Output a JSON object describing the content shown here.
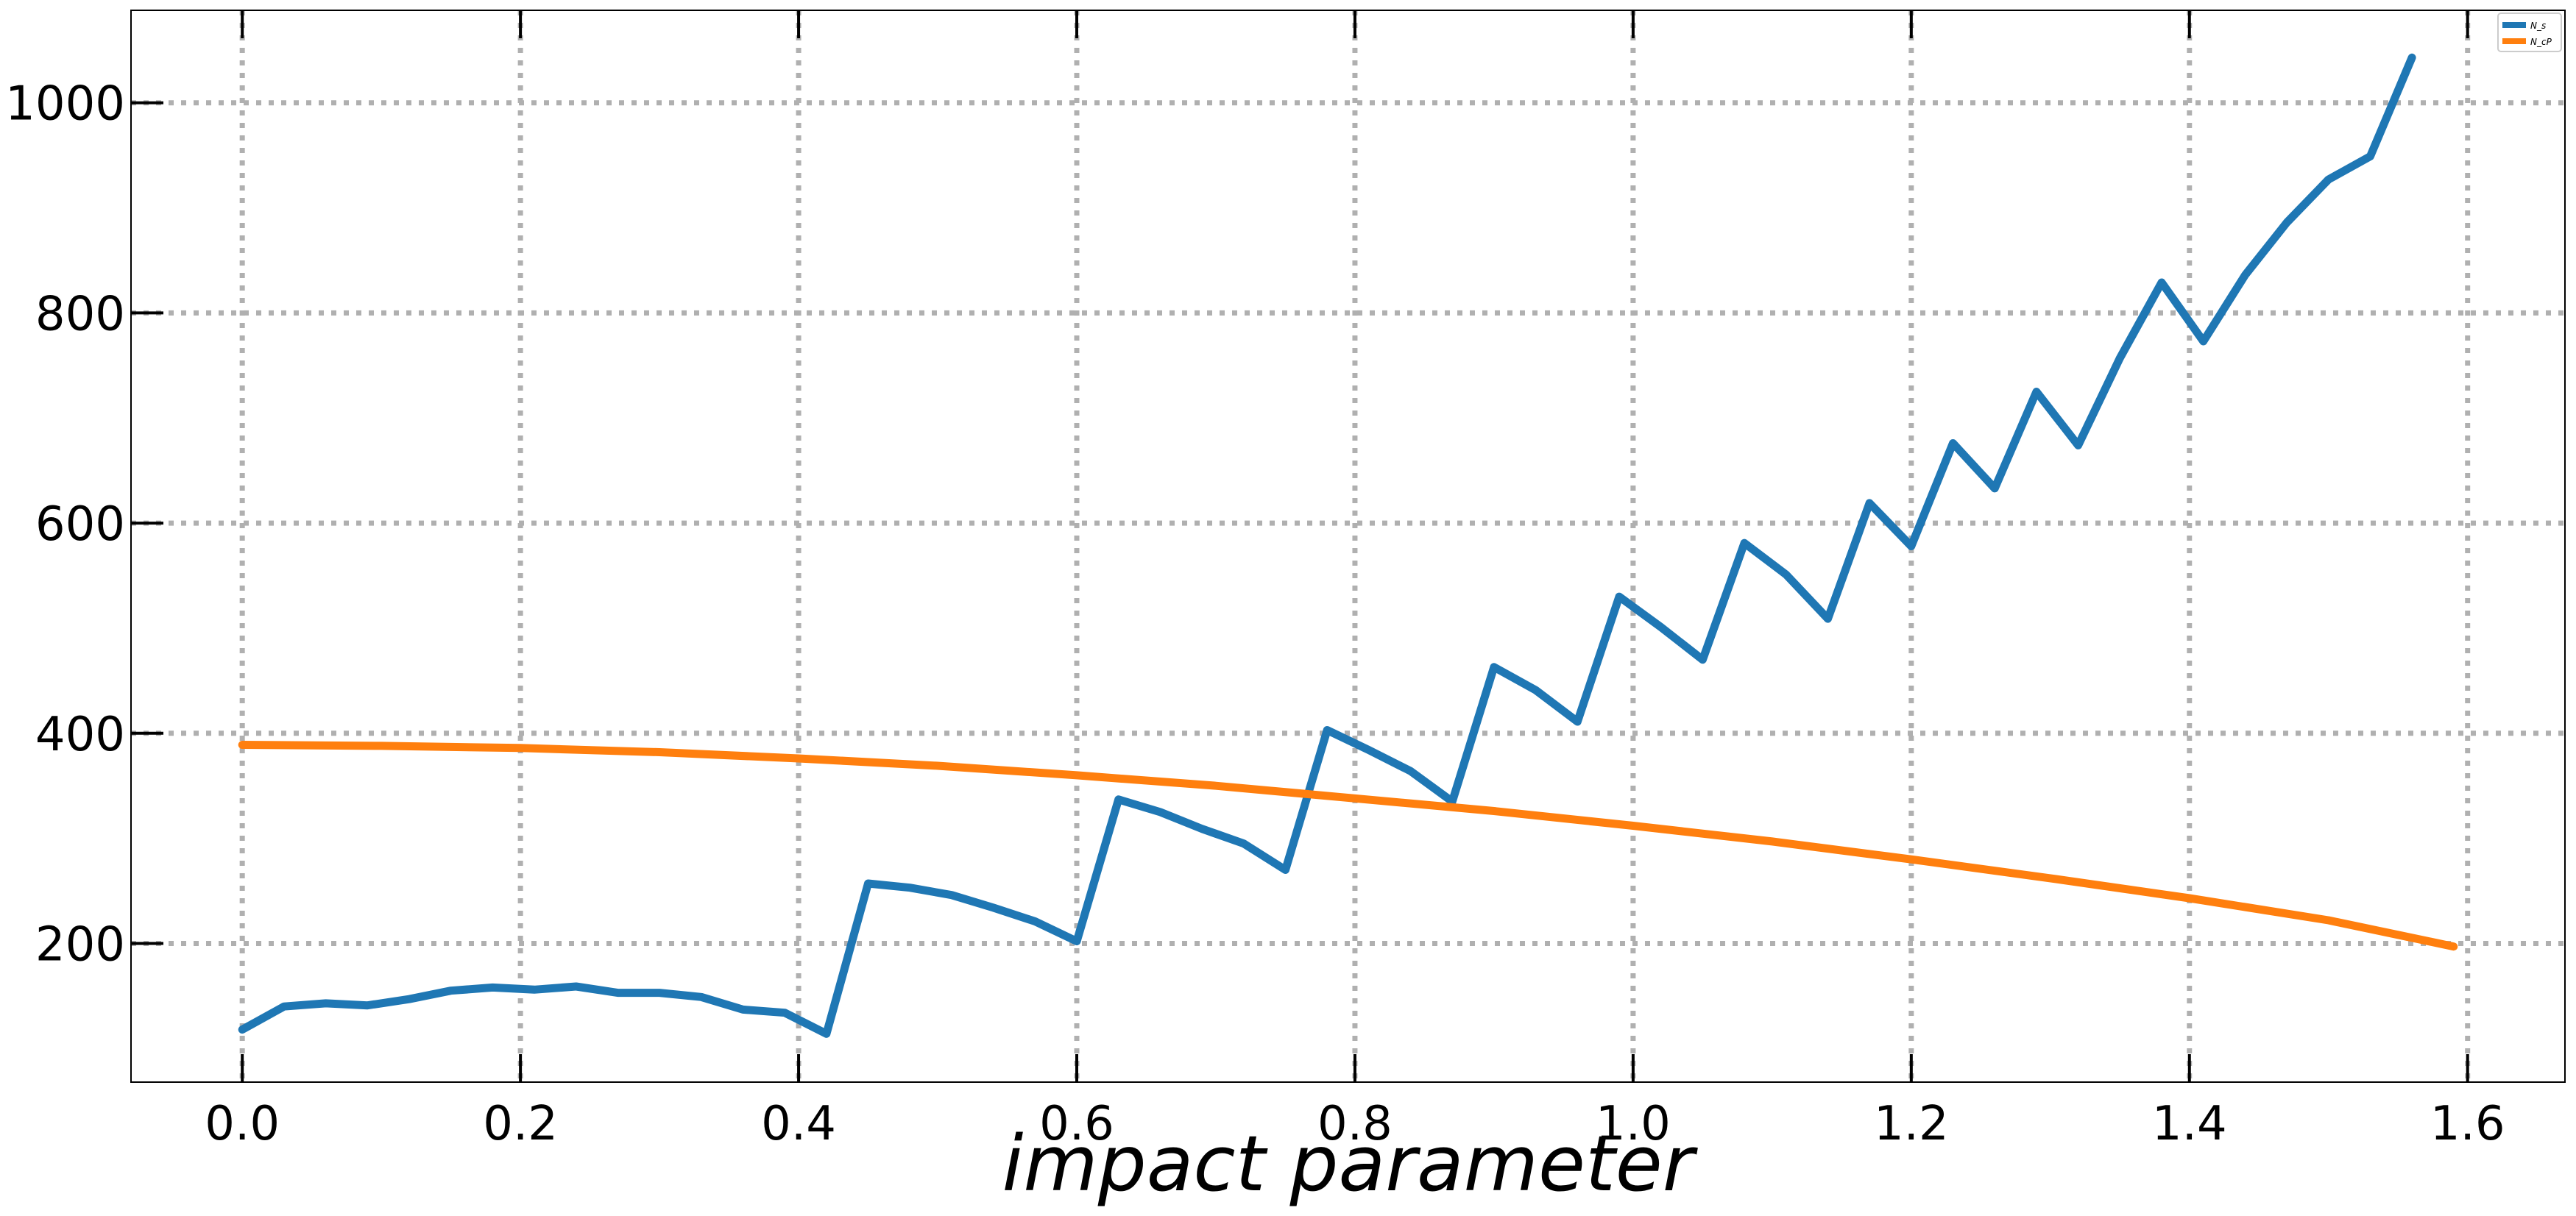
{
  "chart_data": {
    "type": "line",
    "title": "",
    "xlabel": "impact parameter",
    "ylabel": "",
    "xlim": [
      -0.08,
      1.67
    ],
    "ylim": [
      68,
      1088
    ],
    "xticks": [
      "0.0",
      "0.2",
      "0.4",
      "0.6",
      "0.8",
      "1.0",
      "1.2",
      "1.4",
      "1.6"
    ],
    "yticks": [
      "200",
      "400",
      "600",
      "800",
      "1000"
    ],
    "grid": true,
    "legend_position": "top-right",
    "series": [
      {
        "name": "N_s",
        "color": "#1f77b4",
        "x": [
          0.0,
          0.03,
          0.06,
          0.09,
          0.12,
          0.15,
          0.18,
          0.21,
          0.24,
          0.27,
          0.3,
          0.33,
          0.36,
          0.39,
          0.42,
          0.45,
          0.48,
          0.51,
          0.54,
          0.57,
          0.6,
          0.63,
          0.66,
          0.69,
          0.72,
          0.75,
          0.78,
          0.81,
          0.84,
          0.87,
          0.9,
          0.93,
          0.96,
          0.99,
          1.02,
          1.05,
          1.08,
          1.11,
          1.14,
          1.17,
          1.2,
          1.23,
          1.26,
          1.29,
          1.32,
          1.35,
          1.38,
          1.41,
          1.44,
          1.47,
          1.5,
          1.53,
          1.56
        ],
        "values": [
          118,
          140,
          143,
          141,
          147,
          155,
          158,
          156,
          159,
          153,
          153,
          149,
          137,
          134,
          114,
          257,
          253,
          246,
          234,
          221,
          202,
          337,
          325,
          309,
          295,
          270,
          403,
          384,
          364,
          335,
          463,
          441,
          411,
          530,
          501,
          470,
          581,
          551,
          509,
          619,
          578,
          676,
          633,
          725,
          674,
          757,
          829,
          773,
          836,
          886,
          927,
          949,
          1043
        ]
      },
      {
        "name": "N_cP",
        "color": "#ff7f0e",
        "x": [
          0.0,
          0.1,
          0.2,
          0.3,
          0.4,
          0.5,
          0.6,
          0.7,
          0.8,
          0.9,
          1.0,
          1.1,
          1.2,
          1.3,
          1.4,
          1.5,
          1.59
        ],
        "values": [
          389,
          388,
          386,
          382,
          376,
          369,
          360,
          350,
          338,
          326,
          312,
          297,
          280,
          262,
          243,
          222,
          197
        ]
      }
    ]
  }
}
